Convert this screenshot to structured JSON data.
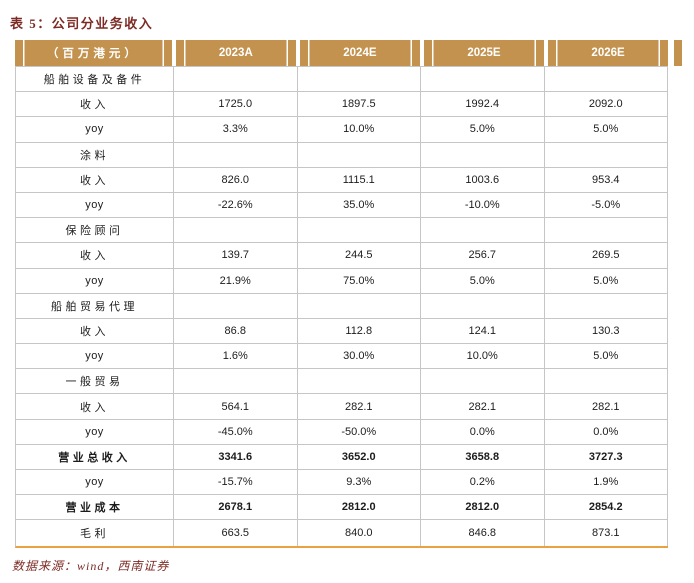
{
  "title": "表 5：公司分业务收入",
  "source": "数据来源：wind，西南证券",
  "colors": {
    "header_bg": "#c3924e",
    "header_text": "#ffffff",
    "grid_line": "#c6c6c6",
    "bottom_rule": "#eba23e",
    "title_text": "#7c2b24"
  },
  "table": {
    "header": {
      "unit": "（百万港元）",
      "years": [
        "2023A",
        "2024E",
        "2025E",
        "2026E"
      ]
    },
    "rows": [
      {
        "label": "船舶设备及备件",
        "type": "section",
        "label_style": "cjk",
        "values": [
          "",
          "",
          "",
          ""
        ]
      },
      {
        "label": "收入",
        "type": "data",
        "label_style": "cjk",
        "values": [
          "1725.0",
          "1897.5",
          "1992.4",
          "2092.0"
        ]
      },
      {
        "label": "yoy",
        "type": "data",
        "label_style": "latin",
        "values": [
          "3.3%",
          "10.0%",
          "5.0%",
          "5.0%"
        ]
      },
      {
        "label": "涂料",
        "type": "section",
        "label_style": "cjk",
        "values": [
          "",
          "",
          "",
          ""
        ]
      },
      {
        "label": "收入",
        "type": "data",
        "label_style": "cjk",
        "values": [
          "826.0",
          "1115.1",
          "1003.6",
          "953.4"
        ]
      },
      {
        "label": "yoy",
        "type": "data",
        "label_style": "latin",
        "values": [
          "-22.6%",
          "35.0%",
          "-10.0%",
          "-5.0%"
        ]
      },
      {
        "label": "保险顾问",
        "type": "section",
        "label_style": "cjk",
        "values": [
          "",
          "",
          "",
          ""
        ]
      },
      {
        "label": "收入",
        "type": "data",
        "label_style": "cjk",
        "values": [
          "139.7",
          "244.5",
          "256.7",
          "269.5"
        ]
      },
      {
        "label": "yoy",
        "type": "data",
        "label_style": "latin",
        "values": [
          "21.9%",
          "75.0%",
          "5.0%",
          "5.0%"
        ]
      },
      {
        "label": "船舶贸易代理",
        "type": "section",
        "label_style": "cjk",
        "values": [
          "",
          "",
          "",
          ""
        ]
      },
      {
        "label": "收入",
        "type": "data",
        "label_style": "cjk",
        "values": [
          "86.8",
          "112.8",
          "124.1",
          "130.3"
        ]
      },
      {
        "label": "yoy",
        "type": "data",
        "label_style": "latin",
        "values": [
          "1.6%",
          "30.0%",
          "10.0%",
          "5.0%"
        ]
      },
      {
        "label": "一般贸易",
        "type": "section",
        "label_style": "cjk",
        "values": [
          "",
          "",
          "",
          ""
        ]
      },
      {
        "label": "收入",
        "type": "data",
        "label_style": "cjk",
        "values": [
          "564.1",
          "282.1",
          "282.1",
          "282.1"
        ]
      },
      {
        "label": "yoy",
        "type": "data",
        "label_style": "latin",
        "values": [
          "-45.0%",
          "-50.0%",
          "0.0%",
          "0.0%"
        ]
      },
      {
        "label": "营业总收入",
        "type": "bold",
        "label_style": "cjk",
        "values": [
          "3341.6",
          "3652.0",
          "3658.8",
          "3727.3"
        ]
      },
      {
        "label": "yoy",
        "type": "data",
        "label_style": "latin",
        "values": [
          "-15.7%",
          "9.3%",
          "0.2%",
          "1.9%"
        ]
      },
      {
        "label": "营业成本",
        "type": "bold",
        "label_style": "cjk",
        "values": [
          "2678.1",
          "2812.0",
          "2812.0",
          "2854.2"
        ]
      },
      {
        "label": "毛利",
        "type": "data",
        "label_style": "cjk",
        "values": [
          "663.5",
          "840.0",
          "846.8",
          "873.1"
        ]
      }
    ]
  }
}
